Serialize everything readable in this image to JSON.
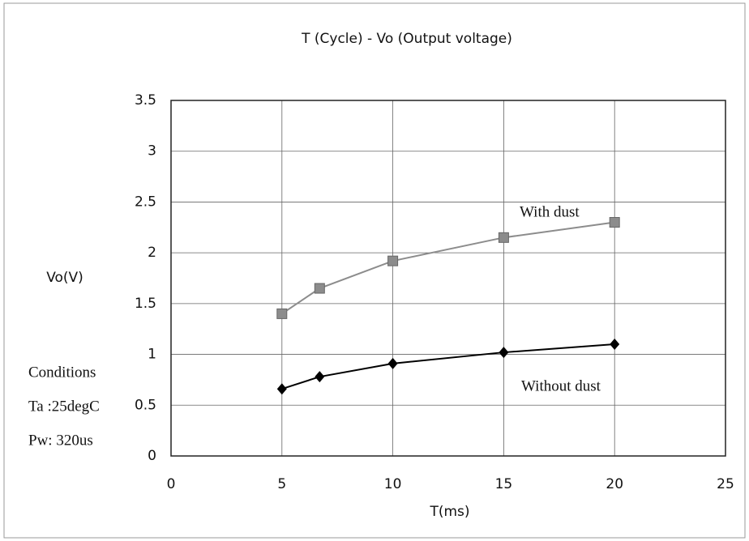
{
  "chart_data": {
    "type": "line",
    "title": "T (Cycle) - Vo (Output voltage)",
    "x_label": "T(ms)",
    "y_label": "Vo(V)",
    "xlim": [
      0,
      25
    ],
    "xticks": [
      0,
      5,
      10,
      15,
      20,
      25
    ],
    "ylim": [
      0,
      3.5
    ],
    "yticks": [
      0,
      0.5,
      1,
      1.5,
      2,
      2.5,
      3,
      3.5
    ],
    "grid": true,
    "series": [
      {
        "name": "With dust",
        "color": "#8c8c8c",
        "marker": "square",
        "x": [
          5,
          6.7,
          10,
          15,
          20
        ],
        "values": [
          1.4,
          1.65,
          1.92,
          2.15,
          2.3
        ]
      },
      {
        "name": "Without dust",
        "color": "#000000",
        "marker": "diamond",
        "x": [
          5,
          6.7,
          10,
          15,
          20
        ],
        "values": [
          0.66,
          0.78,
          0.91,
          1.02,
          1.1
        ]
      }
    ],
    "annotations": [
      "Conditions",
      "Ta :25degC",
      "Pw: 320us"
    ]
  }
}
